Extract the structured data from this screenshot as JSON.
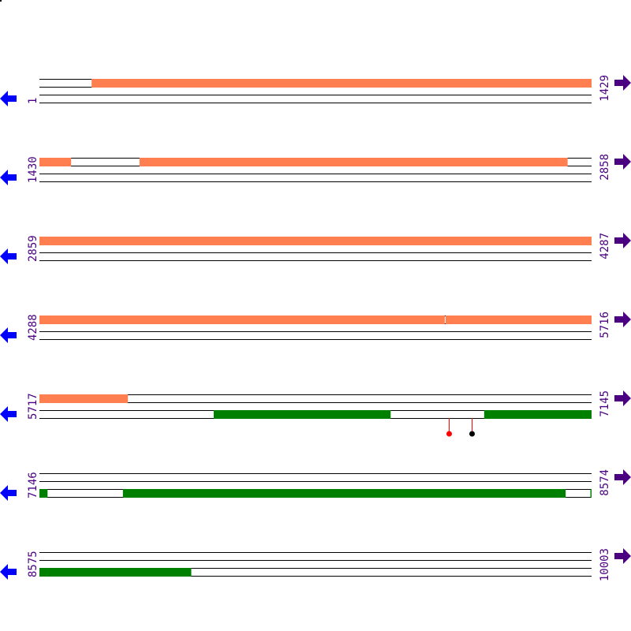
{
  "colors": {
    "frame_forward_feature": "#ff7f50",
    "frame_reverse_feature": "#008000",
    "left_arrow": "#0000ff",
    "right_arrow": "#4b0082",
    "label": "#4b0082",
    "marker_red": "#ff0000",
    "marker_black": "#000000"
  },
  "icons": {
    "left": "arrow-left-icon",
    "right": "arrow-right-icon"
  },
  "rows": [
    {
      "start": "1",
      "end": "1429",
      "s": 1,
      "e": 1429,
      "features": [
        {
          "frame": 1,
          "from": 136,
          "to": 1429,
          "kind": "forward"
        }
      ],
      "markers": []
    },
    {
      "start": "1430",
      "end": "2858",
      "s": 1430,
      "e": 2858,
      "features": [
        {
          "frame": 1,
          "from": 1430,
          "to": 1511,
          "kind": "forward"
        },
        {
          "frame": 1,
          "from": 1689,
          "to": 2796,
          "kind": "forward"
        }
      ],
      "markers": []
    },
    {
      "start": "2859",
      "end": "4287",
      "s": 2859,
      "e": 4287,
      "features": [
        {
          "frame": 1,
          "from": 2859,
          "to": 4287,
          "kind": "forward"
        }
      ],
      "markers": []
    },
    {
      "start": "4288",
      "end": "5716",
      "s": 4288,
      "e": 5716,
      "features": [
        {
          "frame": 1,
          "from": 4288,
          "to": 5336,
          "kind": "forward"
        },
        {
          "frame": 1,
          "from": 5339,
          "to": 5716,
          "kind": "forward"
        }
      ],
      "markers": []
    },
    {
      "start": "5717",
      "end": "7145",
      "s": 5717,
      "e": 7145,
      "features": [
        {
          "frame": 1,
          "from": 5717,
          "to": 5945,
          "kind": "forward"
        },
        {
          "frame": 3,
          "from": 6168,
          "to": 6625,
          "kind": "reverse"
        },
        {
          "frame": 3,
          "from": 6868,
          "to": 7145,
          "kind": "reverse"
        }
      ],
      "markers": [
        {
          "pos": 6777,
          "color": "red"
        },
        {
          "pos": 6836,
          "color": "black"
        }
      ]
    },
    {
      "start": "7146",
      "end": "8574",
      "s": 7146,
      "e": 8574,
      "features": [
        {
          "frame": 3,
          "from": 7146,
          "to": 7166,
          "kind": "reverse"
        },
        {
          "frame": 3,
          "from": 7362,
          "to": 8507,
          "kind": "reverse"
        },
        {
          "frame": 3,
          "from": 8572,
          "to": 8574,
          "kind": "reverse"
        }
      ],
      "markers": []
    },
    {
      "start": "8575",
      "end": "10003",
      "s": 8575,
      "e": 10003,
      "features": [
        {
          "frame": 3,
          "from": 8575,
          "to": 8967,
          "kind": "reverse"
        }
      ],
      "markers": []
    }
  ]
}
